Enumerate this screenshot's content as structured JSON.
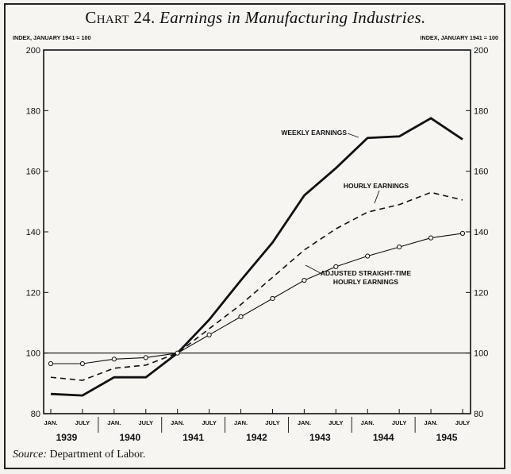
{
  "title": {
    "number": "Chart 24.",
    "text": "Earnings in Manufacturing Industries."
  },
  "source": {
    "label": "Source:",
    "text": "Department of Labor."
  },
  "chart_data": {
    "type": "line",
    "index_label_left": "INDEX, JANUARY 1941 = 100",
    "index_label_right": "INDEX, JANUARY 1941 = 100",
    "ylim": [
      80,
      200
    ],
    "yticks": [
      80,
      100,
      120,
      140,
      160,
      180,
      200
    ],
    "x": [
      "JAN.",
      "JULY",
      "JAN.",
      "JULY",
      "JAN.",
      "JULY",
      "JAN.",
      "JULY",
      "JAN.",
      "JULY",
      "JAN.",
      "JULY",
      "JAN.",
      "JULY"
    ],
    "years": [
      "1939",
      "1940",
      "1941",
      "1942",
      "1943",
      "1944",
      "1945"
    ],
    "reference_line": 100,
    "series": [
      {
        "name": "WEEKLY EARNINGS",
        "style": "solid-heavy",
        "values": [
          86.5,
          86,
          92,
          92,
          100,
          111,
          124,
          136.5,
          152,
          161,
          171,
          171.5,
          177.5,
          170.5
        ]
      },
      {
        "name": "HOURLY EARNINGS",
        "style": "dashed",
        "values": [
          92,
          91,
          95,
          96,
          100,
          108,
          116,
          125,
          134,
          141,
          146.5,
          149,
          153,
          150.5
        ]
      },
      {
        "name": "ADJUSTED STRAIGHT-TIME HOURLY EARNINGS",
        "name_lines": [
          "ADJUSTED STRAIGHT-TIME",
          "HOURLY EARNINGS"
        ],
        "style": "solid-light-markers",
        "values": [
          96.5,
          96.5,
          98,
          98.5,
          100,
          106,
          112,
          118,
          124,
          128.5,
          132,
          135,
          138,
          139.5
        ]
      }
    ],
    "grid": false
  }
}
